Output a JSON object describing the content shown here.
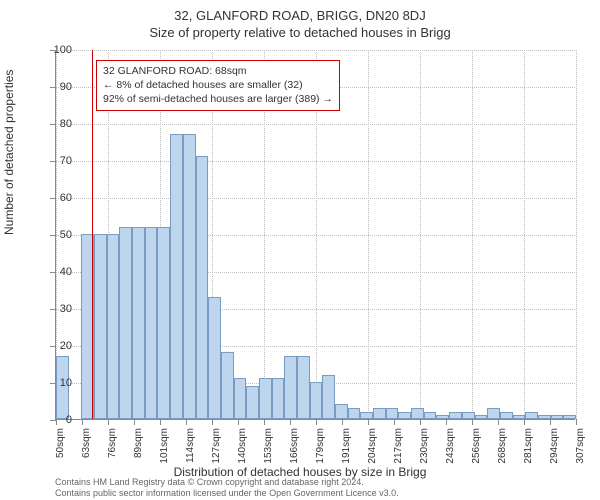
{
  "title_main": "32, GLANFORD ROAD, BRIGG, DN20 8DJ",
  "title_sub": "Size of property relative to detached houses in Brigg",
  "ylabel": "Number of detached properties",
  "xlabel": "Distribution of detached houses by size in Brigg",
  "chart": {
    "type": "histogram",
    "ylim": [
      0,
      100
    ],
    "ytick_step": 10,
    "x_start": 50,
    "x_step": 6.3,
    "x_label_every": 13,
    "bar_color": "#bed6ed",
    "bar_border": "#7a9cc0",
    "grid_color": "#c0c0c0",
    "marker_color": "#cc0000",
    "marker_x": 68,
    "bars": [
      17,
      0,
      50,
      50,
      50,
      52,
      52,
      52,
      52,
      77,
      77,
      71,
      33,
      18,
      11,
      9,
      11,
      11,
      17,
      17,
      10,
      12,
      4,
      3,
      2,
      3,
      3,
      2,
      3,
      2,
      1,
      2,
      2,
      1,
      3,
      2,
      1,
      2,
      1,
      1,
      1
    ],
    "x_labels": [
      "50sqm",
      "63sqm",
      "76sqm",
      "89sqm",
      "101sqm",
      "114sqm",
      "127sqm",
      "140sqm",
      "153sqm",
      "166sqm",
      "179sqm",
      "191sqm",
      "204sqm",
      "217sqm",
      "230sqm",
      "243sqm",
      "256sqm",
      "268sqm",
      "281sqm",
      "294sqm",
      "307sqm"
    ]
  },
  "annotation": {
    "line1": "32 GLANFORD ROAD: 68sqm",
    "line2": "← 8% of detached houses are smaller (32)",
    "line3": "92% of semi-detached houses are larger (389) →"
  },
  "footer": {
    "line1": "Contains HM Land Registry data © Crown copyright and database right 2024.",
    "line2": "Contains public sector information licensed under the Open Government Licence v3.0."
  }
}
